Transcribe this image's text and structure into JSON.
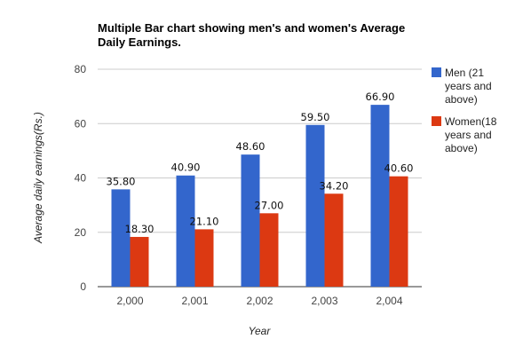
{
  "chart_data": {
    "type": "bar",
    "title": "Multiple Bar chart showing men's and women's Average Daily Earnings.",
    "title_lines": [
      "Multiple Bar chart showing men's and women's Average",
      "Daily Earnings."
    ],
    "xlabel": "Year",
    "ylabel": "Average daily earnings(Rs.)",
    "categories": [
      "2,000",
      "2,001",
      "2,002",
      "2,003",
      "2,004"
    ],
    "ylim": [
      0,
      80
    ],
    "yticks": [
      "0",
      "20",
      "40",
      "60",
      "80"
    ],
    "grid": true,
    "legend_position": "right",
    "series": [
      {
        "name": "Men (21 years and above)",
        "name_lines": [
          "Men (21",
          "years and",
          "above)"
        ],
        "color": "#3366cc",
        "values": [
          35.8,
          40.9,
          48.6,
          59.5,
          66.9
        ],
        "labels": [
          "35.80",
          "40.90",
          "48.60",
          "59.50",
          "66.90"
        ]
      },
      {
        "name": "Women(18 years and above)",
        "name_lines": [
          "Women(18",
          "years and",
          "above)"
        ],
        "color": "#dc3912",
        "values": [
          18.3,
          21.1,
          27.0,
          34.2,
          40.6
        ],
        "labels": [
          "18.30",
          "21.10",
          "27.00",
          "34.20",
          "40.60"
        ]
      }
    ]
  }
}
